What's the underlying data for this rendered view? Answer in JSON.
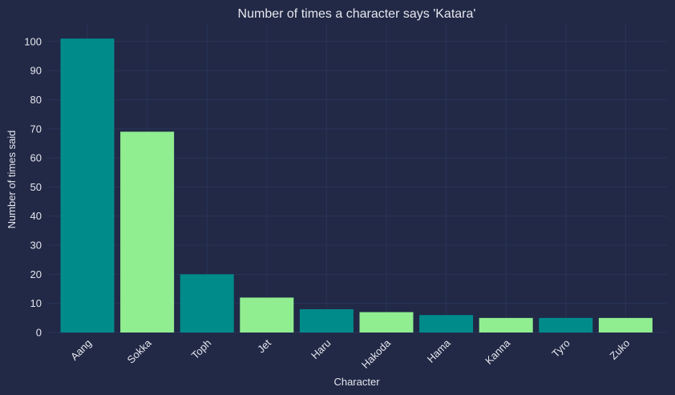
{
  "chart_data": {
    "type": "bar",
    "title": "Number of times a character says 'Katara'",
    "xlabel": "Character",
    "ylabel": "Number of times said",
    "categories": [
      "Aang",
      "Sokka",
      "Toph",
      "Jet",
      "Haru",
      "Hakoda",
      "Hama",
      "Kanna",
      "Tyro",
      "Zuko"
    ],
    "values": [
      101,
      69,
      20,
      12,
      8,
      7,
      6,
      5,
      5,
      5
    ],
    "ylim": [
      0,
      106
    ],
    "yticks": [
      0,
      10,
      20,
      30,
      40,
      50,
      60,
      70,
      80,
      90,
      100
    ],
    "grid": true,
    "colors": [
      "#008b8b",
      "#90ee90"
    ],
    "background": "#212946",
    "grid_color": "#2a3459"
  }
}
